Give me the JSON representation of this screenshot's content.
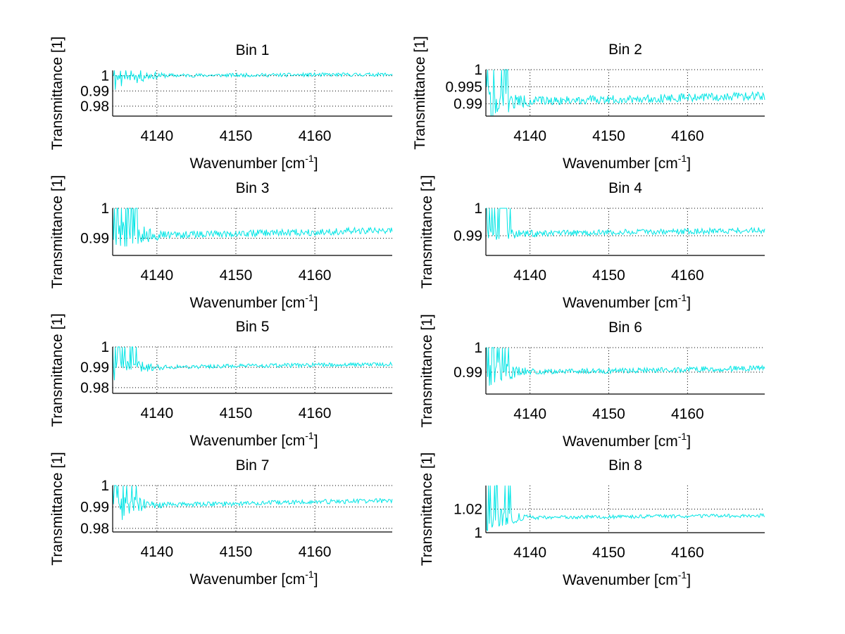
{
  "chart_data": [
    {
      "type": "line",
      "title": "Bin 1",
      "xlabel": "Wavenumber [cm^-1]",
      "xlabel_main": "Wavenumber [cm",
      "xlabel_sup": "-1",
      "xlabel_tail": "]",
      "ylabel": "Transmittance [1]",
      "xlim": [
        4134.4,
        4169.8
      ],
      "ylim": [
        0.9735,
        1.0035
      ],
      "xticks": [
        4140,
        4150,
        4160
      ],
      "xtick_labels": [
        "4140",
        "4150",
        "4160"
      ],
      "yticks": [
        0.98,
        0.99,
        1
      ],
      "ytick_labels": [
        "0.98",
        "0.99",
        "1"
      ],
      "grid": true,
      "series": [
        {
          "name": "Bin 1",
          "color": "#00e5e5",
          "baseline": 1.0,
          "noise_early": 0.012,
          "noise_late": 0.0012,
          "clip_top": 1.0,
          "trend": 0.0008,
          "seed": 11
        }
      ]
    },
    {
      "type": "line",
      "title": "Bin 2",
      "xlabel": "Wavenumber [cm^-1]",
      "xlabel_main": "Wavenumber [cm",
      "xlabel_sup": "-1",
      "xlabel_tail": "]",
      "ylabel": "Transmittance [1]",
      "xlim": [
        4134.4,
        4169.8
      ],
      "ylim": [
        0.9864,
        1.0
      ],
      "xticks": [
        4140,
        4150,
        4160
      ],
      "xtick_labels": [
        "4140",
        "4150",
        "4160"
      ],
      "yticks": [
        0.99,
        0.995,
        1
      ],
      "ytick_labels": [
        "0.99",
        "0.995",
        "1"
      ],
      "grid": true,
      "series": [
        {
          "name": "Bin 2",
          "color": "#00e5e5",
          "baseline": 0.9905,
          "noise_early": 0.006,
          "noise_late": 0.0012,
          "clip_top": 1.0,
          "trend": 0.0018,
          "seed": 22
        }
      ]
    },
    {
      "type": "line",
      "title": "Bin 3",
      "xlabel": "Wavenumber [cm^-1]",
      "xlabel_main": "Wavenumber [cm",
      "xlabel_sup": "-1",
      "xlabel_tail": "]",
      "ylabel": "Transmittance [1]",
      "xlim": [
        4134.4,
        4169.8
      ],
      "ylim": [
        0.9843,
        1.0
      ],
      "xticks": [
        4140,
        4150,
        4160
      ],
      "xtick_labels": [
        "4140",
        "4150",
        "4160"
      ],
      "yticks": [
        0.99,
        1
      ],
      "ytick_labels": [
        "0.99",
        "1"
      ],
      "grid": true,
      "series": [
        {
          "name": "Bin 3",
          "color": "#00e5e5",
          "baseline": 0.9908,
          "noise_early": 0.008,
          "noise_late": 0.0012,
          "clip_top": 1.0,
          "trend": 0.0018,
          "seed": 33
        }
      ]
    },
    {
      "type": "line",
      "title": "Bin 4",
      "xlabel": "Wavenumber [cm^-1]",
      "xlabel_main": "Wavenumber [cm",
      "xlabel_sup": "-1",
      "xlabel_tail": "]",
      "ylabel": "Transmittance [1]",
      "xlim": [
        4134.4,
        4169.8
      ],
      "ylim": [
        0.9828,
        1.0
      ],
      "xticks": [
        4140,
        4150,
        4160
      ],
      "xtick_labels": [
        "4140",
        "4150",
        "4160"
      ],
      "yticks": [
        0.99,
        1
      ],
      "ytick_labels": [
        "0.99",
        "1"
      ],
      "grid": true,
      "series": [
        {
          "name": "Bin 4",
          "color": "#00e5e5",
          "baseline": 0.9905,
          "noise_early": 0.004,
          "noise_late": 0.0011,
          "clip_top": 1.0,
          "trend": 0.0015,
          "seed": 44
        }
      ]
    },
    {
      "type": "line",
      "title": "Bin 5",
      "xlabel": "Wavenumber [cm^-1]",
      "xlabel_main": "Wavenumber [cm",
      "xlabel_sup": "-1",
      "xlabel_tail": "]",
      "ylabel": "Transmittance [1]",
      "xlim": [
        4134.4,
        4169.8
      ],
      "ylim": [
        0.9772,
        1.0
      ],
      "xticks": [
        4140,
        4150,
        4160
      ],
      "xtick_labels": [
        "4140",
        "4150",
        "4160"
      ],
      "yticks": [
        0.98,
        0.99,
        1
      ],
      "ytick_labels": [
        "0.98",
        "0.99",
        "1"
      ],
      "grid": true,
      "series": [
        {
          "name": "Bin 5",
          "color": "#00e5e5",
          "baseline": 0.9898,
          "noise_early": 0.007,
          "noise_late": 0.001,
          "clip_top": 1.0,
          "trend": 0.0018,
          "seed": 55
        }
      ]
    },
    {
      "type": "line",
      "title": "Bin 6",
      "xlabel": "Wavenumber [cm^-1]",
      "xlabel_main": "Wavenumber [cm",
      "xlabel_sup": "-1",
      "xlabel_tail": "]",
      "ylabel": "Transmittance [1]",
      "xlim": [
        4134.4,
        4169.8
      ],
      "ylim": [
        0.9811,
        1.0
      ],
      "xticks": [
        4140,
        4150,
        4160
      ],
      "xtick_labels": [
        "4140",
        "4150",
        "4160"
      ],
      "yticks": [
        0.99,
        1
      ],
      "ytick_labels": [
        "0.99",
        "1"
      ],
      "grid": true,
      "series": [
        {
          "name": "Bin 6",
          "color": "#00e5e5",
          "baseline": 0.9898,
          "noise_early": 0.007,
          "noise_late": 0.0011,
          "clip_top": 1.0,
          "trend": 0.0018,
          "seed": 66
        }
      ]
    },
    {
      "type": "line",
      "title": "Bin 7",
      "xlabel": "Wavenumber [cm^-1]",
      "xlabel_main": "Wavenumber [cm",
      "xlabel_sup": "-1",
      "xlabel_tail": "]",
      "ylabel": "Transmittance [1]",
      "xlim": [
        4134.4,
        4169.8
      ],
      "ylim": [
        0.9783,
        1.0
      ],
      "xticks": [
        4140,
        4150,
        4160
      ],
      "xtick_labels": [
        "4140",
        "4150",
        "4160"
      ],
      "yticks": [
        0.98,
        0.99,
        1
      ],
      "ytick_labels": [
        "0.98",
        "0.99",
        "1"
      ],
      "grid": true,
      "series": [
        {
          "name": "Bin 7",
          "color": "#00e5e5",
          "baseline": 0.9905,
          "noise_early": 0.009,
          "noise_late": 0.0011,
          "clip_top": 1.0,
          "trend": 0.0025,
          "seed": 77
        }
      ]
    },
    {
      "type": "line",
      "title": "Bin 8",
      "xlabel": "Wavenumber [cm^-1]",
      "xlabel_main": "Wavenumber [cm",
      "xlabel_sup": "-1",
      "xlabel_tail": "]",
      "ylabel": "Transmittance [1]",
      "xlim": [
        4134.4,
        4169.8
      ],
      "ylim": [
        1.0,
        1.04
      ],
      "xticks": [
        4140,
        4150,
        4160
      ],
      "xtick_labels": [
        "4140",
        "4150",
        "4160"
      ],
      "yticks": [
        1,
        1.02
      ],
      "ytick_labels": [
        "1",
        "1.02"
      ],
      "grid": true,
      "series": [
        {
          "name": "Bin 8",
          "color": "#00e5e5",
          "baseline": 1.0125,
          "noise_early": 0.012,
          "noise_late": 0.0015,
          "clip_top": 1.04,
          "trend": 0.002,
          "seed": 88
        }
      ]
    }
  ]
}
